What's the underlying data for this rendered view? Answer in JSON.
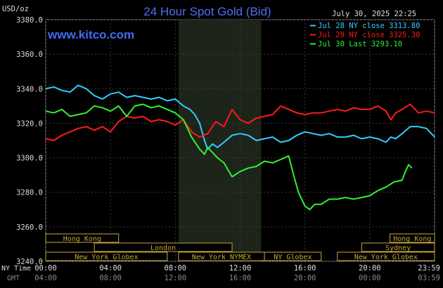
{
  "header": {
    "title": "24 Hour Spot Gold (Bid)",
    "unit": "USD/oz",
    "timestamp": "July 30, 2025 22:25",
    "website": "www.kitco.com"
  },
  "chart_data": {
    "type": "line",
    "title": "24 Hour Spot Gold (Bid)",
    "ylabel": "USD/oz",
    "ylim": [
      3240,
      3380
    ],
    "yticks": [
      "3380.0",
      "3360.0",
      "3340.0",
      "3320.0",
      "3300.0",
      "3280.0",
      "3260.0",
      "3240.0"
    ],
    "xticks_ny": [
      "00:00",
      "04:00",
      "08:00",
      "12:00",
      "16:00",
      "20:00",
      "23:59"
    ],
    "xticks_gmt": [
      "04:00",
      "08:00",
      "12:00",
      "16:00",
      "20:00",
      "00:00",
      "03:59"
    ],
    "xaxis_labels": {
      "ny": "NY Time",
      "gmt": "GMT"
    },
    "legend": [
      {
        "label": "Jul 28 NY close 3313.80",
        "color": "#33ccff"
      },
      {
        "label": "Jul 29 NY close 3325.30",
        "color": "#ff1a1a"
      },
      {
        "label": "Jul 30 Last 3293.10",
        "color": "#33ee33"
      }
    ],
    "legend_position": "top-right",
    "markets": [
      {
        "name": "Hong Kong",
        "row": 0,
        "start_h": 0,
        "end_h": 4.5
      },
      {
        "name": "London",
        "row": 1,
        "start_h": 3,
        "end_h": 11.5
      },
      {
        "name": "New York Globex",
        "row": 2,
        "start_h": 0,
        "end_h": 7.5
      },
      {
        "name": "New York NYMEX",
        "row": 2,
        "start_h": 8.2,
        "end_h": 13.5
      },
      {
        "name": "NY Globex",
        "row": 2,
        "start_h": 13.5,
        "end_h": 17
      },
      {
        "name": "Hong Kong",
        "row": 0,
        "start_h": 21.25,
        "end_h": 24
      },
      {
        "name": "Sydney",
        "row": 1,
        "start_h": 19.5,
        "end_h": 24
      },
      {
        "name": "New York Globex",
        "row": 2,
        "start_h": 18,
        "end_h": 24
      }
    ],
    "shaded_period_h": [
      8.2,
      13.3
    ],
    "series": [
      {
        "name": "Jul 28 NY close 3313.80",
        "color": "#33ccff",
        "x": [
          0,
          0.5,
          1,
          1.5,
          2,
          2.5,
          3,
          3.5,
          4,
          4.5,
          5,
          5.5,
          6,
          6.5,
          7,
          7.5,
          8,
          8.5,
          8.9,
          9.2,
          9.5,
          9.8,
          10,
          10.3,
          10.6,
          11,
          11.5,
          12,
          12.5,
          13,
          13.5,
          14,
          14.5,
          15,
          15.5,
          16,
          16.5,
          17,
          17.5,
          18,
          18.5,
          19,
          19.5,
          20,
          20.5,
          21,
          21.3,
          21.6,
          22,
          22.5,
          23,
          23.5,
          24
        ],
        "y": [
          3340,
          3341,
          3339,
          3338,
          3342,
          3340,
          3336,
          3334,
          3337,
          3338,
          3335,
          3336,
          3335,
          3334,
          3335,
          3333,
          3334,
          3330,
          3328,
          3325,
          3320,
          3310,
          3305,
          3308,
          3306,
          3309,
          3313,
          3314,
          3313,
          3310,
          3311,
          3312,
          3309,
          3310,
          3313,
          3315,
          3314,
          3313,
          3314,
          3312,
          3312,
          3313,
          3311,
          3312,
          3311,
          3309,
          3312,
          3311,
          3314,
          3318,
          3318,
          3317,
          3312
        ]
      },
      {
        "name": "Jul 29 NY close 3325.30",
        "color": "#ff1a1a",
        "x": [
          0,
          0.5,
          1,
          1.5,
          2,
          2.5,
          3,
          3.5,
          4,
          4.5,
          5,
          5.5,
          6,
          6.5,
          7,
          7.5,
          8,
          8.5,
          9,
          9.5,
          10,
          10.5,
          11,
          11.5,
          12,
          12.5,
          13,
          13.5,
          14,
          14.5,
          15,
          15.5,
          16,
          16.5,
          17,
          17.5,
          18,
          18.5,
          19,
          19.5,
          20,
          20.5,
          21,
          21.3,
          21.6,
          22,
          22.5,
          23,
          23.5,
          24
        ],
        "y": [
          3311,
          3310,
          3313,
          3315,
          3317,
          3318,
          3316,
          3318,
          3315,
          3321,
          3324,
          3323,
          3324,
          3321,
          3322,
          3321,
          3319,
          3322,
          3315,
          3312,
          3314,
          3321,
          3318,
          3328,
          3322,
          3320,
          3323,
          3324,
          3325,
          3330,
          3328,
          3326,
          3325,
          3326,
          3326,
          3327,
          3328,
          3327,
          3329,
          3328,
          3328,
          3330,
          3327,
          3322,
          3326,
          3328,
          3331,
          3326,
          3327,
          3326
        ]
      },
      {
        "name": "Jul 30 Last 3293.10",
        "color": "#33ee33",
        "x": [
          0,
          0.5,
          1,
          1.5,
          2,
          2.5,
          3,
          3.5,
          4,
          4.5,
          5,
          5.5,
          6,
          6.5,
          7,
          7.5,
          8,
          8.5,
          9,
          9.5,
          9.8,
          10,
          10.3,
          10.6,
          11,
          11.5,
          12,
          12.5,
          13,
          13.5,
          14,
          14.5,
          15,
          15.3,
          15.6,
          16,
          16.3,
          16.6,
          17,
          17.5,
          18,
          18.5,
          19,
          19.5,
          20,
          20.5,
          21,
          21.5,
          22,
          22.2,
          22.4,
          22.6
        ],
        "y": [
          3327,
          3326,
          3328,
          3324,
          3325,
          3326,
          3330,
          3329,
          3327,
          3330,
          3324,
          3330,
          3331,
          3329,
          3330,
          3328,
          3326,
          3322,
          3312,
          3305,
          3302,
          3306,
          3303,
          3300,
          3297,
          3289,
          3292,
          3294,
          3295,
          3298,
          3297,
          3299,
          3301,
          3290,
          3280,
          3272,
          3270,
          3273,
          3273,
          3276,
          3276,
          3277,
          3276,
          3277,
          3278,
          3281,
          3283,
          3286,
          3287,
          3292,
          3296,
          3294
        ]
      }
    ]
  }
}
